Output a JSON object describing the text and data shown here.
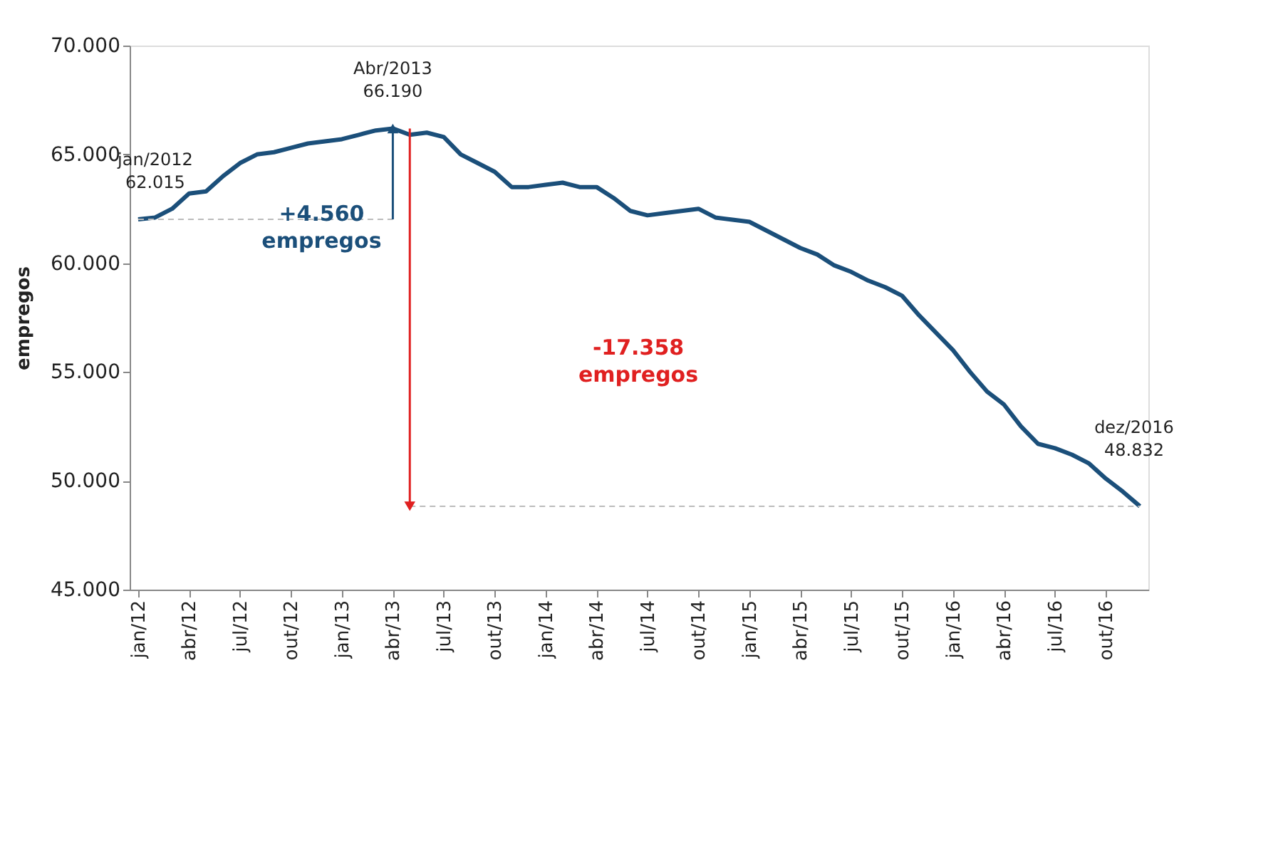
{
  "chart_data": {
    "type": "line",
    "ylabel": "empregos",
    "categories": [
      "jan/12",
      null,
      null,
      "abr/12",
      null,
      null,
      "jul/12",
      null,
      null,
      "out/12",
      null,
      null,
      "jan/13",
      null,
      null,
      "abr/13",
      null,
      null,
      "jul/13",
      null,
      null,
      "out/13",
      null,
      null,
      "jan/14",
      null,
      null,
      "abr/14",
      null,
      null,
      "jul/14",
      null,
      null,
      "out/14",
      null,
      null,
      "jan/15",
      null,
      null,
      "abr/15",
      null,
      null,
      "jul/15",
      null,
      null,
      "out/15",
      null,
      null,
      "jan/16",
      null,
      null,
      "abr/16",
      null,
      null,
      "jul/16",
      null,
      null,
      "out/16",
      null,
      null
    ],
    "series": [
      {
        "color": "#1b4f7a",
        "values": [
          62015,
          62100,
          62500,
          63200,
          63300,
          64000,
          64600,
          65000,
          65100,
          65300,
          65500,
          65600,
          65700,
          65900,
          66100,
          66190,
          65900,
          66000,
          65800,
          65000,
          64600,
          64200,
          63500,
          63500,
          63600,
          63700,
          63500,
          63500,
          63000,
          62400,
          62200,
          62300,
          62400,
          62500,
          62100,
          62000,
          61900,
          61500,
          61100,
          60700,
          60400,
          59900,
          59600,
          59200,
          58900,
          58500,
          57600,
          56800,
          56000,
          55000,
          54100,
          53500,
          52500,
          51700,
          51500,
          51200,
          50800,
          50100,
          49500,
          48832
        ]
      }
    ],
    "ylim": [
      45000,
      70000
    ],
    "yticks": [
      {
        "value": 45000,
        "label": "45.000"
      },
      {
        "value": 50000,
        "label": "50.000"
      },
      {
        "value": 55000,
        "label": "55.000"
      },
      {
        "value": 60000,
        "label": "60.000"
      },
      {
        "value": 65000,
        "label": "65.000"
      },
      {
        "value": 70000,
        "label": "70.000"
      }
    ],
    "grid": false,
    "marker": "none",
    "line_style": "solid",
    "annotations": [
      {
        "text": "jan/2012\n62.015",
        "x": "jan/12",
        "y": 62015
      },
      {
        "text": "Abr/2013\n66.190",
        "x": "abr/13",
        "y": 66190
      },
      "dez/2016\n48.832",
      {
        "text": "+4.560\nempregos",
        "x": "abr/13",
        "y": 66190
      },
      "-17.358\nempregos"
    ]
  }
}
